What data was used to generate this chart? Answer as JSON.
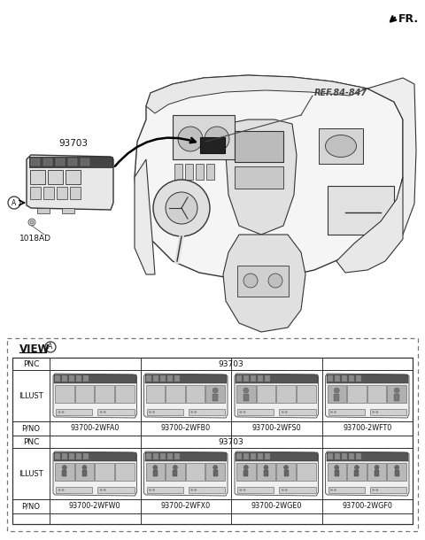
{
  "background_color": "#ffffff",
  "fr_label": "FR.",
  "ref_label": "REF.84-847",
  "part_label_93703": "93703",
  "part_label_1018AD": "1018AD",
  "view_label": "VIEW",
  "circle_a_label": "A",
  "pnc_label": "PNC",
  "pnc_value": "93703",
  "illust_label": "ILLUST",
  "pno_label": "P/NO",
  "row1_pnos": [
    "93700-2WFA0",
    "93700-2WFB0",
    "93700-2WFS0",
    "93700-2WFT0"
  ],
  "row2_pnos": [
    "93700-2WFW0",
    "93700-2WFX0",
    "93700-2WGE0",
    "93700-2WGF0"
  ],
  "text_color": "#111111",
  "line_color": "#333333",
  "light_gray": "#cccccc",
  "mid_gray": "#888888",
  "dark_strip": "#555555"
}
